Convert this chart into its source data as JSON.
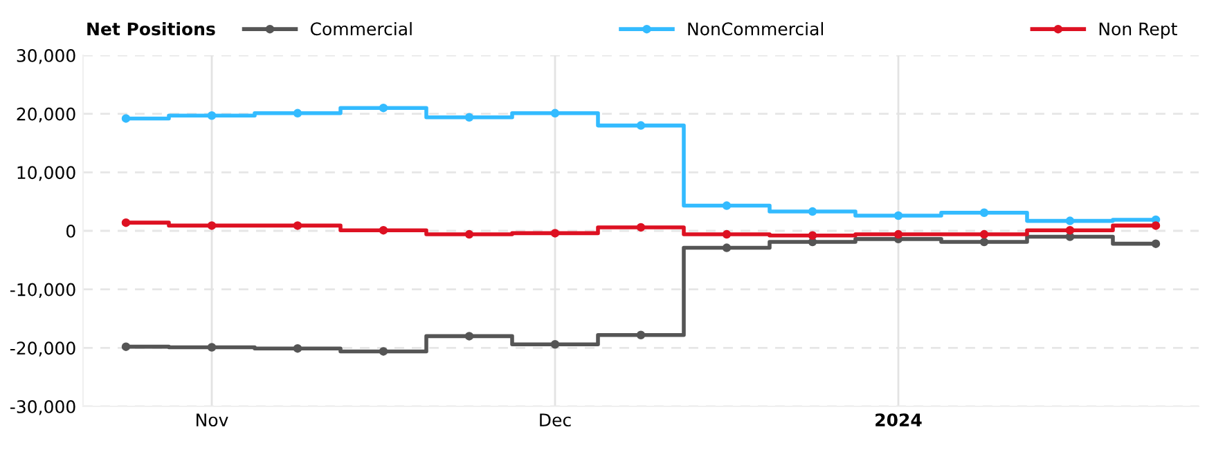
{
  "chart_data": {
    "type": "step",
    "legend_title": "Net Positions",
    "categories": [
      null,
      "Nov",
      null,
      null,
      null,
      "Dec",
      null,
      null,
      null,
      "2024",
      null,
      null,
      null
    ],
    "series": [
      {
        "name": "Commercial",
        "color": "#555555",
        "values": [
          -19800,
          -19900,
          -20100,
          -20600,
          -18000,
          -19400,
          -17800,
          -2900,
          -1900,
          -1400,
          -1900,
          -1000,
          -2200
        ]
      },
      {
        "name": "NonCommercial",
        "color": "#33bbff",
        "values": [
          19200,
          19700,
          20100,
          21000,
          19400,
          20100,
          18000,
          4300,
          3300,
          2600,
          3100,
          1700,
          1900
        ]
      },
      {
        "name": "Non Rept",
        "color": "#dd1122",
        "values": [
          1400,
          900,
          900,
          100,
          -600,
          -400,
          600,
          -600,
          -800,
          -600,
          -600,
          100,
          900
        ]
      }
    ],
    "ylim": [
      -30000,
      30000
    ],
    "yticks": [
      {
        "value": -30000,
        "label": "-30,000"
      },
      {
        "value": -20000,
        "label": "-20,000"
      },
      {
        "value": -10000,
        "label": "-10,000"
      },
      0,
      {
        "value": 10000,
        "label": "10,000"
      },
      {
        "value": 20000,
        "label": "20,000"
      },
      {
        "value": 30000,
        "label": "30,000"
      }
    ],
    "grid": true,
    "legend": "top",
    "marker": "circle",
    "line_style": "solid"
  }
}
